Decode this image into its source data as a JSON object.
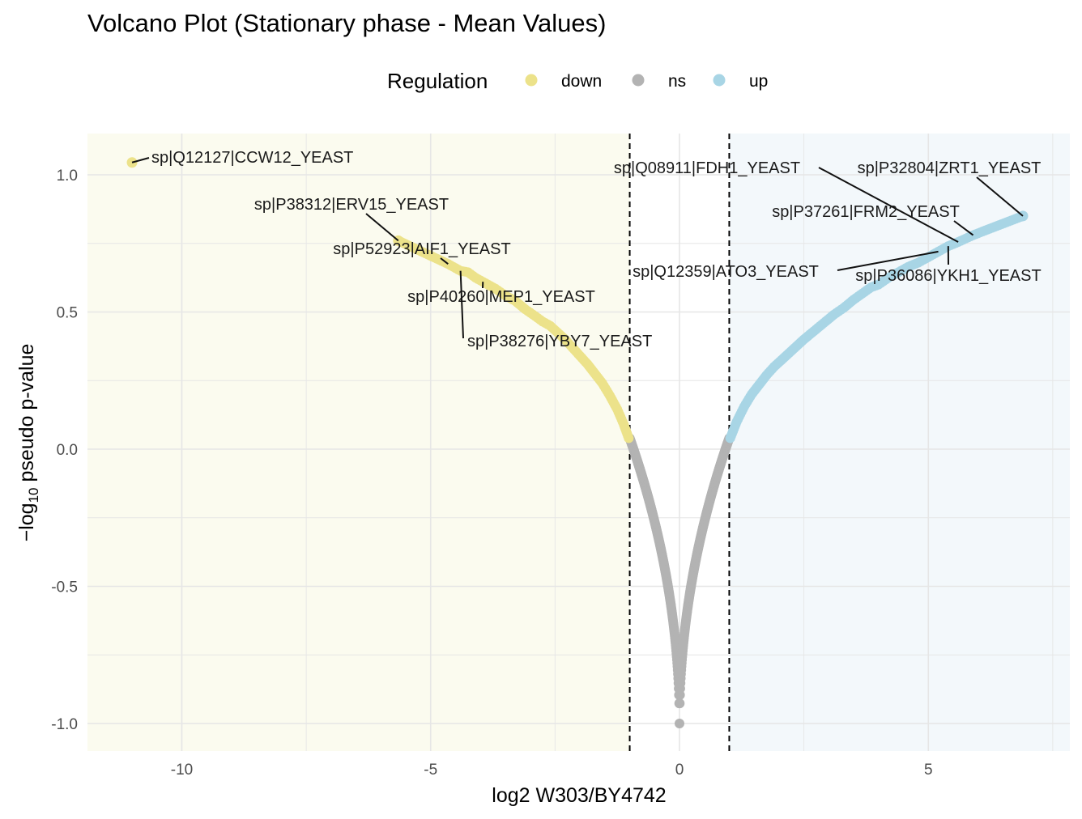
{
  "colors": {
    "down": "#ece28a",
    "ns": "#b3b3b3",
    "up": "#a8d5e5",
    "down_region": "#fbfbef",
    "up_region": "#f3f8fb",
    "grid": "#e6e6e6"
  },
  "chart_data": {
    "type": "scatter",
    "title": "Volcano Plot (Stationary phase - Mean Values)",
    "xlabel": "log2 W303/BY4742",
    "ylabel_main": "−log",
    "ylabel_sub": "10",
    "ylabel_rest": " pseudo p-value",
    "xlim": [
      -12,
      7.8
    ],
    "ylim": [
      -1.1,
      1.15
    ],
    "x_ticks": [
      -10,
      -5,
      0,
      5
    ],
    "x_tick_labels": [
      "-10",
      "-5",
      "0",
      "5"
    ],
    "y_ticks": [
      -1.0,
      -0.5,
      0.0,
      0.5,
      1.0
    ],
    "y_tick_labels": [
      "-1.0",
      "-0.5",
      "0.0",
      "0.5",
      "1.0"
    ],
    "grid": true,
    "thresholds": [
      -1,
      1
    ],
    "legend": {
      "title": "Regulation",
      "position": "top",
      "entries": [
        "down",
        "ns",
        "up"
      ]
    },
    "series": [
      {
        "name": "down",
        "points": [
          [
            -11.0,
            1.045
          ],
          [
            -5.65,
            0.76
          ],
          [
            -4.65,
            0.675
          ],
          [
            -4.4,
            0.65
          ],
          [
            -4.25,
            0.645
          ],
          [
            -4.1,
            0.625
          ],
          [
            -3.95,
            0.61
          ],
          [
            -3.85,
            0.6
          ],
          [
            -3.7,
            0.585
          ],
          [
            -3.5,
            0.56
          ],
          [
            -3.3,
            0.54
          ],
          [
            -3.1,
            0.51
          ],
          [
            -2.9,
            0.485
          ],
          [
            -2.75,
            0.465
          ],
          [
            -2.6,
            0.45
          ],
          [
            -2.45,
            0.425
          ],
          [
            -2.3,
            0.4
          ],
          [
            -2.15,
            0.37
          ],
          [
            -2.0,
            0.34
          ],
          [
            -1.85,
            0.31
          ],
          [
            -1.7,
            0.275
          ],
          [
            -1.55,
            0.24
          ],
          [
            -1.4,
            0.195
          ],
          [
            -1.25,
            0.145
          ],
          [
            -1.12,
            0.09
          ],
          [
            -1.02,
            0.04
          ]
        ]
      },
      {
        "name": "ns",
        "curve": "abs(x)^0.5 * 1.04 - 1.0",
        "xrange": [
          -1.0,
          1.0
        ]
      },
      {
        "name": "up",
        "points": [
          [
            1.02,
            0.04
          ],
          [
            1.15,
            0.1
          ],
          [
            1.3,
            0.155
          ],
          [
            1.45,
            0.2
          ],
          [
            1.6,
            0.235
          ],
          [
            1.75,
            0.27
          ],
          [
            1.9,
            0.3
          ],
          [
            2.05,
            0.325
          ],
          [
            2.2,
            0.35
          ],
          [
            2.35,
            0.375
          ],
          [
            2.5,
            0.4
          ],
          [
            2.7,
            0.43
          ],
          [
            2.9,
            0.46
          ],
          [
            3.1,
            0.49
          ],
          [
            3.3,
            0.515
          ],
          [
            3.5,
            0.545
          ],
          [
            3.85,
            0.59
          ],
          [
            4.0,
            0.6
          ],
          [
            4.2,
            0.625
          ],
          [
            4.4,
            0.645
          ],
          [
            4.6,
            0.665
          ],
          [
            4.8,
            0.68
          ],
          [
            5.0,
            0.7
          ],
          [
            5.2,
            0.72
          ],
          [
            5.4,
            0.74
          ],
          [
            5.6,
            0.755
          ],
          [
            5.9,
            0.78
          ],
          [
            6.9,
            0.85
          ]
        ]
      }
    ],
    "annotations": [
      {
        "label": "sp|Q12127|CCW12_YEAST",
        "x": -11.0,
        "y": 1.045
      },
      {
        "label": "sp|P38312|ERV15_YEAST",
        "x": -5.65,
        "y": 0.76
      },
      {
        "label": "sp|P52923|AIF1_YEAST",
        "x": -4.65,
        "y": 0.675
      },
      {
        "label": "sp|P40260|MEP1_YEAST",
        "x": -3.95,
        "y": 0.61
      },
      {
        "label": "sp|P38276|YBY7_YEAST",
        "x": -4.4,
        "y": 0.65
      },
      {
        "label": "sp|Q08911|FDH1_YEAST",
        "x": 5.6,
        "y": 0.755
      },
      {
        "label": "sp|P32804|ZRT1_YEAST",
        "x": 6.9,
        "y": 0.85
      },
      {
        "label": "sp|P37261|FRM2_YEAST",
        "x": 5.9,
        "y": 0.78
      },
      {
        "label": "sp|Q12359|ATO3_YEAST",
        "x": 5.2,
        "y": 0.72
      },
      {
        "label": "sp|P36086|YKH1_YEAST",
        "x": 5.4,
        "y": 0.74
      }
    ]
  }
}
